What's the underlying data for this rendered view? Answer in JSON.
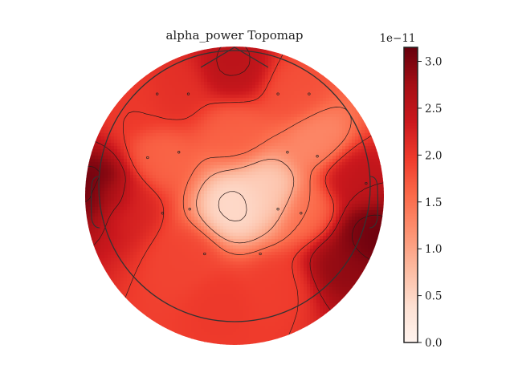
{
  "chart_data": {
    "type": "heatmap",
    "subtype": "topomap",
    "title": "alpha_power Topomap",
    "colormap": "Reds",
    "colors": {
      "low": "#fff5f0",
      "mid": "#fb7050",
      "high": "#67000d",
      "outline": "#333333",
      "contour": "#2a1a1a"
    },
    "colorbar": {
      "offset_text": "1e−11",
      "vmin": 0.0,
      "vmax": 3.15,
      "ticks": [
        0.0,
        0.5,
        1.0,
        1.5,
        2.0,
        2.5,
        3.0
      ],
      "tick_labels": [
        "0.0",
        "0.5",
        "1.0",
        "1.5",
        "2.0",
        "2.5",
        "3.0"
      ]
    },
    "units_scale": 1e-11,
    "sources": [
      {
        "x": 0.0,
        "y": 0.86,
        "value": 2.55
      },
      {
        "x": -0.45,
        "y": 0.68,
        "value": 2.1
      },
      {
        "x": 0.45,
        "y": 0.68,
        "value": 1.8
      },
      {
        "x": 0.62,
        "y": 0.35,
        "value": 1.25
      },
      {
        "x": -0.72,
        "y": 0.62,
        "value": 2.0
      },
      {
        "x": 0.0,
        "y": 0.4,
        "value": 1.65
      },
      {
        "x": -0.55,
        "y": 0.2,
        "value": 1.6
      },
      {
        "x": -0.98,
        "y": -0.02,
        "value": 3.15
      },
      {
        "x": -0.8,
        "y": -0.12,
        "value": 2.2
      },
      {
        "x": -0.35,
        "y": -0.55,
        "value": 1.9
      },
      {
        "x": 0.0,
        "y": -0.15,
        "value": 0.4
      },
      {
        "x": 0.25,
        "y": -0.05,
        "value": 0.55
      },
      {
        "x": 0.55,
        "y": -0.2,
        "value": 1.5
      },
      {
        "x": 0.95,
        "y": -0.35,
        "value": 3.15
      },
      {
        "x": 0.78,
        "y": -0.55,
        "value": 2.9
      },
      {
        "x": 0.88,
        "y": 0.05,
        "value": 2.5
      },
      {
        "x": 0.3,
        "y": -0.75,
        "value": 1.95
      },
      {
        "x": -0.1,
        "y": -0.85,
        "value": 2.0
      }
    ],
    "sensors": [
      {
        "x": -0.57,
        "y": 0.68
      },
      {
        "x": -0.34,
        "y": 0.68
      },
      {
        "x": 0.32,
        "y": 0.68
      },
      {
        "x": 0.55,
        "y": 0.68
      },
      {
        "x": -0.64,
        "y": 0.21
      },
      {
        "x": -0.41,
        "y": 0.25
      },
      {
        "x": 0.39,
        "y": 0.25
      },
      {
        "x": 0.61,
        "y": 0.22
      },
      {
        "x": -0.53,
        "y": -0.2
      },
      {
        "x": -0.33,
        "y": -0.17
      },
      {
        "x": 0.32,
        "y": -0.17
      },
      {
        "x": 0.49,
        "y": -0.2
      },
      {
        "x": -0.22,
        "y": -0.5
      },
      {
        "x": 0.19,
        "y": -0.5
      },
      {
        "x": 0.97,
        "y": 0.02
      }
    ],
    "contour_levels": [
      0.5,
      1.0,
      1.5,
      2.0,
      2.5,
      3.0
    ],
    "grid": false
  }
}
